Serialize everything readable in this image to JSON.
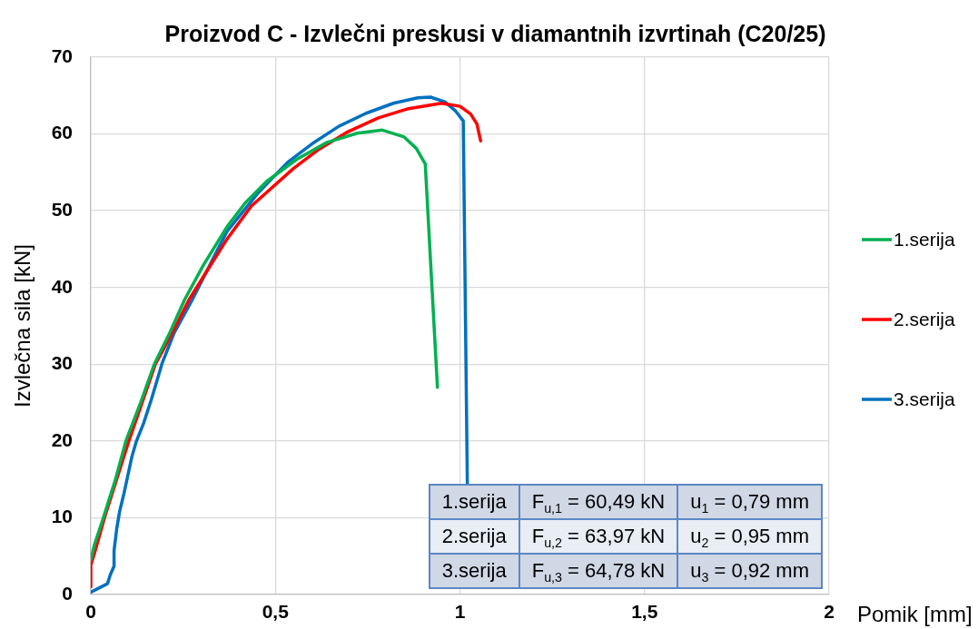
{
  "chart_data": {
    "type": "line",
    "title": "Proizvod C - Izvlečni preskusi v diamantnih izvrtinah (C20/25)",
    "xlabel": "Pomik [mm]",
    "ylabel": "Izvlečna sila [kN]",
    "xlim": [
      0,
      2
    ],
    "ylim": [
      0,
      70
    ],
    "xticks": [
      0,
      {
        "value": 0.5,
        "label": "0,5"
      },
      1,
      {
        "value": 1.5,
        "label": "1,5"
      },
      2
    ],
    "yticks": [
      0,
      10,
      20,
      30,
      40,
      50,
      60,
      70
    ],
    "grid": true,
    "legend": "right",
    "series": [
      {
        "name": "1.serija",
        "color": "#00b050",
        "x": [
          0,
          0.01,
          0.034,
          0.067,
          0.095,
          0.135,
          0.172,
          0.215,
          0.254,
          0.305,
          0.369,
          0.418,
          0.476,
          0.558,
          0.64,
          0.722,
          0.79,
          0.849,
          0.882,
          0.906,
          0.939
        ],
        "values": [
          4.5,
          6.5,
          10,
          15,
          20,
          25,
          30,
          34.2,
          38.4,
          42.9,
          47.9,
          51,
          53.8,
          56.7,
          58.9,
          60.1,
          60.5,
          59.6,
          58.1,
          56.1,
          27
        ]
      },
      {
        "name": "2.serija",
        "color": "#ff0000",
        "x": [
          0,
          0,
          0.012,
          0.037,
          0.07,
          0.103,
          0.139,
          0.175,
          0.22,
          0.266,
          0.314,
          0.369,
          0.435,
          0.549,
          0.615,
          0.697,
          0.779,
          0.861,
          0.95,
          1.0,
          1.029,
          1.046,
          1.056
        ],
        "values": [
          1,
          3.8,
          5.7,
          10,
          15,
          20,
          25,
          30,
          34,
          38.4,
          42.1,
          46.3,
          50.6,
          55.5,
          57.9,
          60.3,
          62.1,
          63.3,
          64,
          63.6,
          62.6,
          61.3,
          59.1
        ]
      },
      {
        "name": "3.serija",
        "color": "#0070c0",
        "x": [
          0,
          0.045,
          0.053,
          0.063,
          0.063,
          0.07,
          0.078,
          0.09,
          0.111,
          0.123,
          0.143,
          0.164,
          0.193,
          0.226,
          0.275,
          0.339,
          0.369,
          0.451,
          0.533,
          0.599,
          0.672,
          0.746,
          0.82,
          0.886,
          0.92,
          0.959,
          0.988,
          1.009,
          1.02
        ],
        "values": [
          0.3,
          1.4,
          2.6,
          3.7,
          5.7,
          8.5,
          10.8,
          13.2,
          17.9,
          19.9,
          22.3,
          25.4,
          30.1,
          34.1,
          38.4,
          44.5,
          47.3,
          52.2,
          56.3,
          58.7,
          61,
          62.7,
          64,
          64.7,
          64.8,
          64.2,
          63,
          61.7,
          14.5
        ]
      }
    ],
    "annotations": [
      "1.serija",
      "F$_{u,1}$ = 60,49 kN",
      "u$_{1}$ = 0,79 mm",
      "2.serija",
      "F$_{u,2}$ = 63,97 kN",
      "u$_{2}$ = 0,95 mm",
      "3.serija",
      "F$_{u,3}$ = 64,78 kN",
      "u$_{3}$ = 0,92 mm"
    ]
  }
}
